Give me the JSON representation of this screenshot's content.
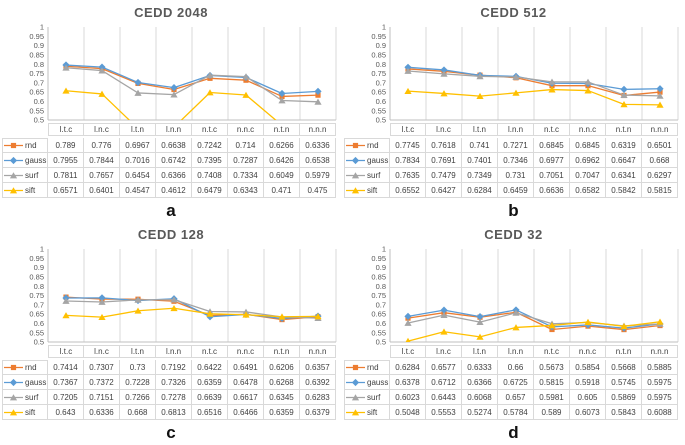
{
  "figure": {
    "background": "#ffffff",
    "grid_color": "#D9D9D9",
    "axis_color": "#BFBFBF",
    "title_color": "#595959",
    "table_text_color": "#404040",
    "tick_label_color": "#595959"
  },
  "chart_data": [
    {
      "type": "line",
      "title": "CEDD 2048",
      "panel_label": "a",
      "xlabel": "",
      "ylabel": "",
      "ylim": [
        0.5,
        1
      ],
      "yticks": [
        1,
        0.95,
        0.9,
        0.85,
        0.8,
        0.75,
        0.7,
        0.65,
        0.6,
        0.55,
        0.5
      ],
      "grid": "vertical",
      "legend_position": "table-left",
      "categories": [
        "l.t.c",
        "l.n.c",
        "l.t.n",
        "l.n.n",
        "n.t.c",
        "n.n.c",
        "n.t.n",
        "n.n.n"
      ],
      "series": [
        {
          "name": "rnd",
          "color": "#ED7D31",
          "marker": "square",
          "values": [
            0.789,
            0.776,
            0.6967,
            0.6638,
            0.7242,
            0.714,
            0.6266,
            0.6336
          ]
        },
        {
          "name": "gauss",
          "color": "#5B9BD5",
          "marker": "diamond",
          "values": [
            0.7955,
            0.7844,
            0.7016,
            0.6742,
            0.7395,
            0.7287,
            0.6426,
            0.6538
          ]
        },
        {
          "name": "surf",
          "color": "#A5A5A5",
          "marker": "triangle",
          "values": [
            0.7811,
            0.7657,
            0.6454,
            0.6366,
            0.7408,
            0.7334,
            0.6049,
            0.5979
          ]
        },
        {
          "name": "sift",
          "color": "#FFC000",
          "marker": "triangle",
          "values": [
            0.6571,
            0.6401,
            0.4547,
            0.4612,
            0.6479,
            0.6343,
            0.471,
            0.475
          ]
        }
      ]
    },
    {
      "type": "line",
      "title": "CEDD 512",
      "panel_label": "b",
      "xlabel": "",
      "ylabel": "",
      "ylim": [
        0.5,
        1
      ],
      "yticks": [
        1,
        0.95,
        0.9,
        0.85,
        0.8,
        0.75,
        0.7,
        0.65,
        0.6,
        0.55,
        0.5
      ],
      "grid": "vertical",
      "legend_position": "table-left",
      "categories": [
        "l.t.c",
        "l.n.c",
        "l.t.n",
        "l.n.n",
        "n.t.c",
        "n.n.c",
        "n.t.n",
        "n.n.n"
      ],
      "series": [
        {
          "name": "rnd",
          "color": "#ED7D31",
          "marker": "square",
          "values": [
            0.7745,
            0.7618,
            0.741,
            0.7271,
            0.6845,
            0.6845,
            0.6319,
            0.6501
          ]
        },
        {
          "name": "gauss",
          "color": "#5B9BD5",
          "marker": "diamond",
          "values": [
            0.7834,
            0.7691,
            0.7401,
            0.7346,
            0.6977,
            0.6962,
            0.6647,
            0.668
          ]
        },
        {
          "name": "surf",
          "color": "#A5A5A5",
          "marker": "triangle",
          "values": [
            0.7635,
            0.7479,
            0.7349,
            0.731,
            0.7051,
            0.7047,
            0.6341,
            0.6297
          ]
        },
        {
          "name": "sift",
          "color": "#FFC000",
          "marker": "triangle",
          "values": [
            0.6552,
            0.6427,
            0.6284,
            0.6459,
            0.6636,
            0.6582,
            0.5842,
            0.5815
          ]
        }
      ]
    },
    {
      "type": "line",
      "title": "CEDD 128",
      "panel_label": "c",
      "xlabel": "",
      "ylabel": "",
      "ylim": [
        0.5,
        1
      ],
      "yticks": [
        1,
        0.95,
        0.9,
        0.85,
        0.8,
        0.75,
        0.7,
        0.65,
        0.6,
        0.55,
        0.5
      ],
      "grid": "vertical",
      "legend_position": "table-left",
      "categories": [
        "l.t.c",
        "l.n.c",
        "l.t.n",
        "l.n.n",
        "n.t.c",
        "n.n.c",
        "n.t.n",
        "n.n.n"
      ],
      "series": [
        {
          "name": "rnd",
          "color": "#ED7D31",
          "marker": "square",
          "values": [
            0.7414,
            0.7307,
            0.73,
            0.7192,
            0.6422,
            0.6491,
            0.6206,
            0.6357
          ]
        },
        {
          "name": "gauss",
          "color": "#5B9BD5",
          "marker": "diamond",
          "values": [
            0.7367,
            0.7372,
            0.7228,
            0.7326,
            0.6359,
            0.6478,
            0.6268,
            0.6392
          ]
        },
        {
          "name": "surf",
          "color": "#A5A5A5",
          "marker": "triangle",
          "values": [
            0.7205,
            0.7151,
            0.7266,
            0.7278,
            0.6639,
            0.6617,
            0.6345,
            0.6283
          ]
        },
        {
          "name": "sift",
          "color": "#FFC000",
          "marker": "triangle",
          "values": [
            0.643,
            0.6336,
            0.668,
            0.6813,
            0.6516,
            0.6466,
            0.6359,
            0.6379
          ]
        }
      ]
    },
    {
      "type": "line",
      "title": "CEDD 32",
      "panel_label": "d",
      "xlabel": "",
      "ylabel": "",
      "ylim": [
        0.5,
        1
      ],
      "yticks": [
        1,
        0.95,
        0.9,
        0.85,
        0.8,
        0.75,
        0.7,
        0.65,
        0.6,
        0.55,
        0.5
      ],
      "grid": "vertical",
      "legend_position": "table-left",
      "categories": [
        "l.t.c",
        "l.n.c",
        "l.t.n",
        "l.n.n",
        "n.t.c",
        "n.n.c",
        "n.t.n",
        "n.n.n"
      ],
      "series": [
        {
          "name": "rnd",
          "color": "#ED7D31",
          "marker": "square",
          "values": [
            0.6284,
            0.6577,
            0.6333,
            0.66,
            0.5673,
            0.5854,
            0.5668,
            0.5885
          ]
        },
        {
          "name": "gauss",
          "color": "#5B9BD5",
          "marker": "diamond",
          "values": [
            0.6378,
            0.6712,
            0.6366,
            0.6725,
            0.5815,
            0.5918,
            0.5745,
            0.5975
          ]
        },
        {
          "name": "surf",
          "color": "#A5A5A5",
          "marker": "triangle",
          "values": [
            0.6023,
            0.6443,
            0.6068,
            0.657,
            0.5981,
            0.605,
            0.5869,
            0.5975
          ]
        },
        {
          "name": "sift",
          "color": "#FFC000",
          "marker": "triangle",
          "values": [
            0.5048,
            0.5553,
            0.5274,
            0.5784,
            0.589,
            0.6073,
            0.5843,
            0.6088
          ]
        }
      ]
    }
  ]
}
